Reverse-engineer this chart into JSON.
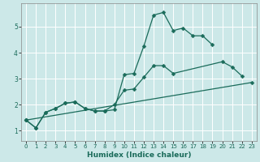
{
  "title": "",
  "xlabel": "Humidex (Indice chaleur)",
  "bg_color": "#cce8e8",
  "grid_color": "#ffffff",
  "line_color": "#1a6b5a",
  "xlim": [
    -0.5,
    23.5
  ],
  "ylim": [
    0.6,
    5.9
  ],
  "xticks": [
    0,
    1,
    2,
    3,
    4,
    5,
    6,
    7,
    8,
    9,
    10,
    11,
    12,
    13,
    14,
    15,
    16,
    17,
    18,
    19,
    20,
    21,
    22,
    23
  ],
  "yticks": [
    1,
    2,
    3,
    4,
    5
  ],
  "series": [
    {
      "x": [
        0,
        1,
        2,
        3,
        4,
        5,
        6,
        7,
        8,
        9,
        10,
        11,
        12,
        13,
        14,
        15,
        16,
        17,
        18,
        19
      ],
      "y": [
        1.4,
        1.1,
        1.7,
        1.85,
        2.05,
        2.1,
        1.85,
        1.75,
        1.75,
        1.8,
        3.15,
        3.2,
        4.25,
        5.45,
        5.55,
        4.85,
        4.95,
        4.65,
        4.65,
        4.3
      ]
    },
    {
      "x": [
        0,
        1,
        2,
        3,
        4,
        5,
        6,
        7,
        8,
        9,
        10,
        11,
        12,
        13,
        14,
        15,
        20,
        21,
        22
      ],
      "y": [
        1.4,
        1.1,
        1.7,
        1.85,
        2.05,
        2.1,
        1.85,
        1.75,
        1.75,
        2.0,
        2.55,
        2.6,
        3.05,
        3.5,
        3.5,
        3.2,
        3.65,
        3.45,
        3.1
      ]
    },
    {
      "x": [
        0,
        23
      ],
      "y": [
        1.4,
        2.85
      ]
    }
  ],
  "marker": "D",
  "markersize": 2.5,
  "linewidth": 0.9,
  "tick_fontsize": 5.0,
  "xlabel_fontsize": 6.5
}
